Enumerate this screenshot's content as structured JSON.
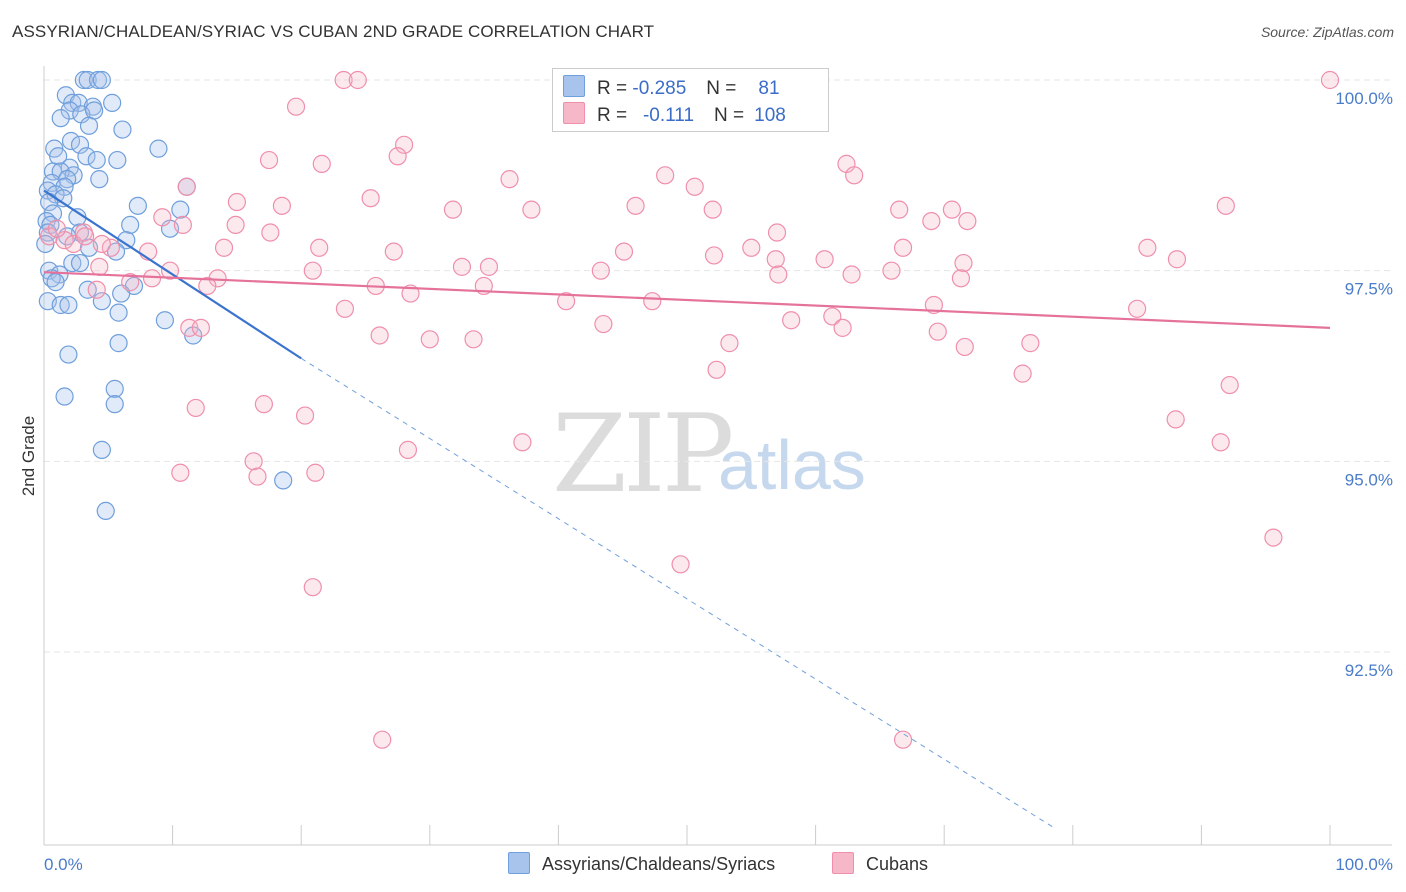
{
  "title": "ASSYRIAN/CHALDEAN/SYRIAC VS CUBAN 2ND GRADE CORRELATION CHART",
  "source": "Source: ZipAtlas.com",
  "watermark": {
    "zip": "ZIP",
    "atlas": "atlas"
  },
  "stats": {
    "r_label": "R =",
    "n_label": "N =",
    "rows": [
      {
        "r": "-0.285",
        "n": "81",
        "color": "#a8c4ec"
      },
      {
        "r": "-0.111",
        "n": "108",
        "color": "#f6b7c8"
      }
    ]
  },
  "legend": {
    "items": [
      {
        "label": "Assyrians/Chaldeans/Syriacs",
        "color": "#a8c4ec"
      },
      {
        "label": "Cubans",
        "color": "#f6b7c8"
      }
    ]
  },
  "chart_data": {
    "type": "scatter",
    "title": "ASSYRIAN/CHALDEAN/SYRIAC VS CUBAN 2ND GRADE CORRELATION CHART",
    "xlabel": "",
    "ylabel": "2nd Grade",
    "xlim": [
      0,
      100
    ],
    "ylim": [
      90.2,
      100.3
    ],
    "x_tick_labels": [
      "0.0%",
      "100.0%"
    ],
    "y_ticks": [
      92.5,
      95.0,
      97.5,
      100.0
    ],
    "y_tick_labels": [
      "92.5%",
      "95.0%",
      "97.5%",
      "100.0%"
    ],
    "grid": true,
    "series": [
      {
        "name": "Assyrians/Chaldeans/Syriacs",
        "color": "#6f9fdc",
        "trend": {
          "x0": 0,
          "y0": 98.55,
          "x1": 20,
          "y1": 96.35,
          "dash_to_x": 78.5,
          "dash_to_y": 90.2
        },
        "points": [
          [
            3.1,
            100.0
          ],
          [
            3.4,
            100.0
          ],
          [
            4.2,
            100.0
          ],
          [
            4.5,
            100.0
          ],
          [
            1.7,
            99.8
          ],
          [
            2.2,
            99.7
          ],
          [
            2.7,
            99.7
          ],
          [
            3.8,
            99.65
          ],
          [
            5.3,
            99.7
          ],
          [
            2.0,
            99.6
          ],
          [
            2.9,
            99.55
          ],
          [
            3.9,
            99.6
          ],
          [
            1.3,
            99.5
          ],
          [
            3.5,
            99.4
          ],
          [
            6.1,
            99.35
          ],
          [
            2.1,
            99.2
          ],
          [
            2.8,
            99.15
          ],
          [
            8.9,
            99.1
          ],
          [
            0.8,
            99.1
          ],
          [
            1.1,
            99.0
          ],
          [
            3.3,
            99.0
          ],
          [
            4.1,
            98.95
          ],
          [
            5.7,
            98.95
          ],
          [
            2.0,
            98.85
          ],
          [
            0.7,
            98.8
          ],
          [
            1.3,
            98.8
          ],
          [
            2.3,
            98.75
          ],
          [
            1.8,
            98.7
          ],
          [
            4.3,
            98.7
          ],
          [
            0.6,
            98.65
          ],
          [
            1.6,
            98.6
          ],
          [
            11.1,
            98.6
          ],
          [
            0.3,
            98.55
          ],
          [
            0.9,
            98.5
          ],
          [
            1.5,
            98.45
          ],
          [
            0.4,
            98.4
          ],
          [
            7.3,
            98.35
          ],
          [
            10.6,
            98.3
          ],
          [
            0.7,
            98.25
          ],
          [
            2.6,
            98.2
          ],
          [
            0.2,
            98.15
          ],
          [
            0.5,
            98.1
          ],
          [
            6.7,
            98.1
          ],
          [
            9.8,
            98.05
          ],
          [
            2.8,
            98.0
          ],
          [
            0.3,
            98.0
          ],
          [
            1.8,
            97.95
          ],
          [
            6.4,
            97.9
          ],
          [
            0.1,
            97.85
          ],
          [
            3.5,
            97.8
          ],
          [
            5.6,
            97.75
          ],
          [
            2.2,
            97.6
          ],
          [
            2.8,
            97.6
          ],
          [
            0.4,
            97.5
          ],
          [
            1.2,
            97.45
          ],
          [
            0.6,
            97.4
          ],
          [
            0.9,
            97.35
          ],
          [
            7.0,
            97.3
          ],
          [
            3.4,
            97.25
          ],
          [
            6.0,
            97.2
          ],
          [
            0.3,
            97.1
          ],
          [
            1.3,
            97.05
          ],
          [
            1.9,
            97.05
          ],
          [
            4.5,
            97.1
          ],
          [
            5.8,
            96.95
          ],
          [
            9.4,
            96.85
          ],
          [
            11.6,
            96.65
          ],
          [
            5.8,
            96.55
          ],
          [
            1.9,
            96.4
          ],
          [
            5.5,
            95.95
          ],
          [
            1.6,
            95.85
          ],
          [
            5.5,
            95.75
          ],
          [
            4.5,
            95.15
          ],
          [
            18.6,
            94.75
          ],
          [
            4.8,
            94.35
          ]
        ]
      },
      {
        "name": "Cubans",
        "color": "#ef8fac",
        "trend": {
          "x0": 0,
          "y0": 97.48,
          "x1": 100,
          "y1": 96.75
        },
        "points": [
          [
            23.3,
            100.0
          ],
          [
            24.4,
            100.0
          ],
          [
            100.0,
            100.0
          ],
          [
            19.6,
            99.65
          ],
          [
            28.0,
            99.15
          ],
          [
            27.5,
            99.0
          ],
          [
            17.5,
            98.95
          ],
          [
            21.6,
            98.9
          ],
          [
            62.4,
            98.9
          ],
          [
            48.3,
            98.75
          ],
          [
            63.0,
            98.75
          ],
          [
            36.2,
            98.7
          ],
          [
            50.6,
            98.6
          ],
          [
            11.1,
            98.6
          ],
          [
            25.4,
            98.45
          ],
          [
            15.0,
            98.4
          ],
          [
            18.5,
            98.35
          ],
          [
            46.0,
            98.35
          ],
          [
            91.9,
            98.35
          ],
          [
            31.8,
            98.3
          ],
          [
            37.9,
            98.3
          ],
          [
            52.0,
            98.3
          ],
          [
            66.5,
            98.3
          ],
          [
            70.6,
            98.3
          ],
          [
            9.2,
            98.2
          ],
          [
            69.0,
            98.15
          ],
          [
            71.8,
            98.15
          ],
          [
            10.8,
            98.1
          ],
          [
            14.9,
            98.1
          ],
          [
            3.1,
            98.0
          ],
          [
            17.6,
            98.0
          ],
          [
            0.4,
            97.95
          ],
          [
            1.6,
            97.9
          ],
          [
            2.3,
            97.85
          ],
          [
            5.2,
            97.8
          ],
          [
            8.1,
            97.75
          ],
          [
            14.0,
            97.8
          ],
          [
            21.4,
            97.8
          ],
          [
            27.2,
            97.75
          ],
          [
            45.1,
            97.75
          ],
          [
            55.0,
            97.8
          ],
          [
            66.8,
            97.8
          ],
          [
            85.8,
            97.8
          ],
          [
            88.1,
            97.65
          ],
          [
            52.1,
            97.7
          ],
          [
            56.9,
            97.65
          ],
          [
            60.7,
            97.65
          ],
          [
            71.5,
            97.6
          ],
          [
            4.3,
            97.55
          ],
          [
            9.8,
            97.5
          ],
          [
            20.9,
            97.5
          ],
          [
            32.5,
            97.55
          ],
          [
            34.6,
            97.55
          ],
          [
            43.3,
            97.5
          ],
          [
            57.1,
            97.45
          ],
          [
            62.8,
            97.45
          ],
          [
            65.9,
            97.5
          ],
          [
            71.3,
            97.4
          ],
          [
            8.4,
            97.4
          ],
          [
            13.5,
            97.4
          ],
          [
            25.8,
            97.3
          ],
          [
            34.2,
            97.3
          ],
          [
            4.1,
            97.25
          ],
          [
            6.7,
            97.35
          ],
          [
            12.7,
            97.3
          ],
          [
            28.5,
            97.2
          ],
          [
            40.6,
            97.1
          ],
          [
            47.3,
            97.1
          ],
          [
            69.2,
            97.05
          ],
          [
            85.0,
            97.0
          ],
          [
            23.4,
            97.0
          ],
          [
            61.3,
            96.9
          ],
          [
            58.1,
            96.85
          ],
          [
            43.5,
            96.8
          ],
          [
            11.3,
            96.75
          ],
          [
            12.2,
            96.75
          ],
          [
            62.1,
            96.75
          ],
          [
            69.5,
            96.7
          ],
          [
            26.1,
            96.65
          ],
          [
            30.0,
            96.6
          ],
          [
            33.4,
            96.6
          ],
          [
            53.3,
            96.55
          ],
          [
            76.7,
            96.55
          ],
          [
            71.6,
            96.5
          ],
          [
            52.3,
            96.2
          ],
          [
            76.1,
            96.15
          ],
          [
            92.2,
            96.0
          ],
          [
            17.1,
            95.75
          ],
          [
            11.8,
            95.7
          ],
          [
            20.3,
            95.6
          ],
          [
            88.0,
            95.55
          ],
          [
            91.5,
            95.25
          ],
          [
            37.2,
            95.25
          ],
          [
            28.3,
            95.15
          ],
          [
            16.3,
            95.0
          ],
          [
            16.6,
            94.8
          ],
          [
            10.6,
            94.85
          ],
          [
            21.1,
            94.85
          ],
          [
            95.6,
            94.0
          ],
          [
            49.5,
            93.65
          ],
          [
            20.9,
            93.35
          ],
          [
            66.8,
            91.35
          ],
          [
            26.3,
            91.35
          ],
          [
            57.0,
            98.0
          ],
          [
            3.2,
            97.95
          ],
          [
            1.0,
            98.05
          ],
          [
            4.5,
            97.85
          ]
        ]
      }
    ]
  }
}
